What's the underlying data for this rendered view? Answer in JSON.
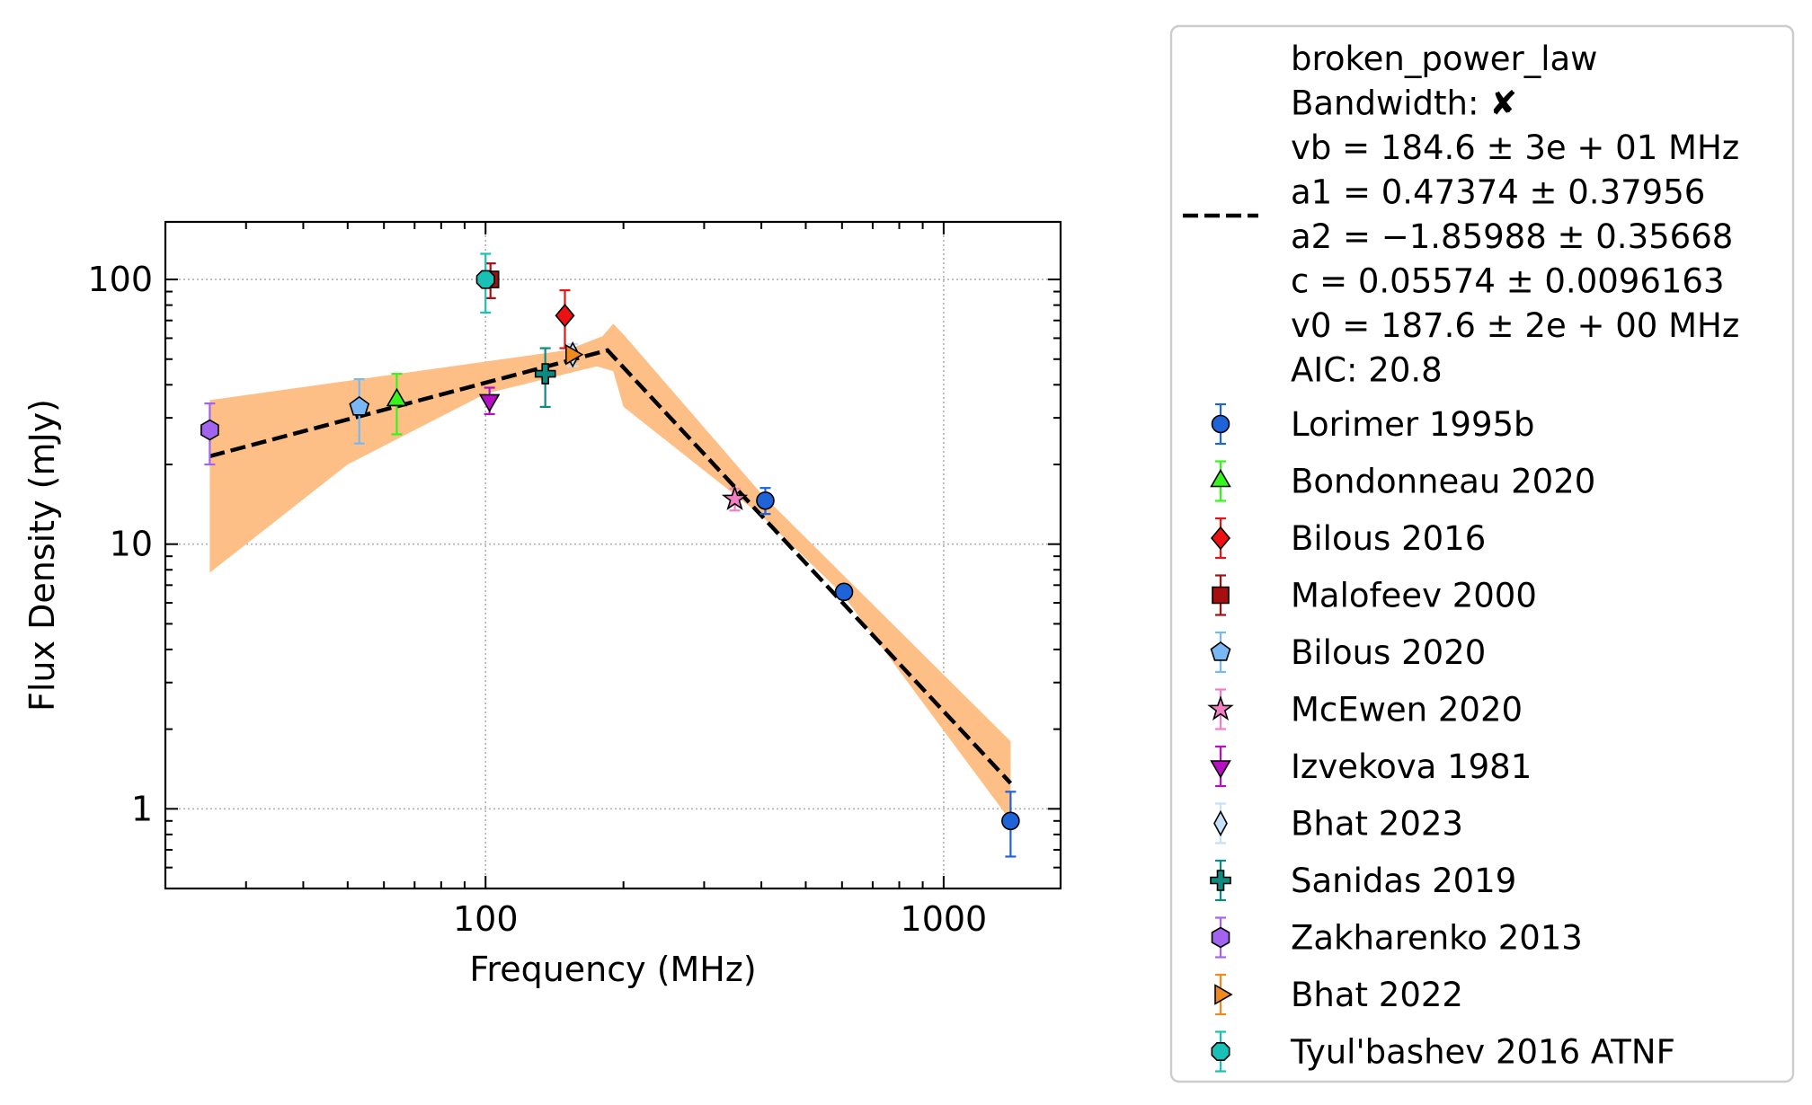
{
  "chart_data": {
    "type": "scatter",
    "xlabel": "Frequency (MHz)",
    "ylabel": "Flux Density (mJy)",
    "xscale": "log",
    "yscale": "log",
    "xlim": [
      20,
      1800
    ],
    "ylim": [
      0.5,
      165
    ],
    "x_ticks": [
      100,
      1000
    ],
    "x_tick_labels": [
      "100",
      "1000"
    ],
    "y_ticks": [
      1,
      10,
      100
    ],
    "y_tick_labels": [
      "1",
      "10",
      "100"
    ],
    "grid": true,
    "legend_position": "outside-right",
    "fit": {
      "name": "broken_power_law",
      "lines": [
        "broken_power_law",
        "Bandwidth: ✘",
        "vb = 184.6 ± 3e + 01 MHz",
        "a1 = 0.47374 ± 0.37956",
        "a2 = −1.85988 ± 0.35668",
        "c = 0.05574 ± 0.0096163",
        "v0 = 187.6 ± 2e + 00 MHz",
        "AIC: 20.8"
      ],
      "line_color": "#000000",
      "line_style": "dashed",
      "band_color": "#fdbf86",
      "curve": [
        [
          25,
          21.5
        ],
        [
          184.6,
          54
        ],
        [
          1400,
          1.25
        ]
      ],
      "band_upper": [
        [
          25,
          35
        ],
        [
          150,
          54
        ],
        [
          180,
          61
        ],
        [
          190,
          68
        ],
        [
          200,
          62
        ],
        [
          400,
          15.5
        ],
        [
          1400,
          1.8
        ]
      ],
      "band_lower": [
        [
          25,
          7.8
        ],
        [
          50,
          20
        ],
        [
          100,
          37
        ],
        [
          175,
          47
        ],
        [
          190,
          45
        ],
        [
          200,
          33
        ],
        [
          400,
          12.8
        ],
        [
          600,
          6.5
        ],
        [
          1400,
          0.9
        ]
      ]
    },
    "series": [
      {
        "name": "Lorimer 1995b",
        "marker": "circle",
        "color": "#1f63d9",
        "ecolor": "#1f63d9",
        "points": [
          {
            "x": 408,
            "y": 14.6,
            "lo": 13.0,
            "hi": 16.3
          },
          {
            "x": 606,
            "y": 6.6,
            "lo": 6.2,
            "hi": 7.0
          },
          {
            "x": 1400,
            "y": 0.9,
            "lo": 0.66,
            "hi": 1.16
          }
        ]
      },
      {
        "name": "Bondonneau 2020",
        "marker": "triangle-up",
        "color": "#36f51c",
        "ecolor": "#36f51c",
        "points": [
          {
            "x": 64,
            "y": 35,
            "lo": 26,
            "hi": 44
          }
        ]
      },
      {
        "name": "Bilous 2016",
        "marker": "diamond",
        "color": "#ee1111",
        "ecolor": "#ee1111",
        "points": [
          {
            "x": 149,
            "y": 73,
            "lo": 55,
            "hi": 91
          }
        ]
      },
      {
        "name": "Malofeev 2000",
        "marker": "square",
        "color": "#a50f0f",
        "ecolor": "#a50f0f",
        "points": [
          {
            "x": 102.5,
            "y": 100,
            "lo": 85,
            "hi": 115
          }
        ]
      },
      {
        "name": "Bilous 2020",
        "marker": "pentagon",
        "color": "#7ab8f5",
        "ecolor": "#7ab8f5",
        "points": [
          {
            "x": 53,
            "y": 33,
            "lo": 24,
            "hi": 42
          }
        ]
      },
      {
        "name": "McEwen 2020",
        "marker": "star",
        "color": "#f27fc3",
        "ecolor": "#f27fc3",
        "points": [
          {
            "x": 350,
            "y": 14.8,
            "lo": 13.4,
            "hi": 16.2
          }
        ]
      },
      {
        "name": "Izvekova 1981",
        "marker": "triangle-down",
        "color": "#b70fc4",
        "ecolor": "#b70fc4",
        "points": [
          {
            "x": 102,
            "y": 35,
            "lo": 31,
            "hi": 39
          }
        ]
      },
      {
        "name": "Bhat 2023",
        "marker": "thin-diamond",
        "color": "#c6e0f7",
        "ecolor": "#c6e0f7",
        "points": [
          {
            "x": 155,
            "y": 52,
            "lo": 47,
            "hi": 57
          }
        ]
      },
      {
        "name": "Sanidas 2019",
        "marker": "plus",
        "color": "#0f8a80",
        "ecolor": "#0f8a80",
        "points": [
          {
            "x": 135,
            "y": 44,
            "lo": 33,
            "hi": 55
          }
        ]
      },
      {
        "name": "Zakharenko 2013",
        "marker": "hexagon",
        "color": "#a264ef",
        "ecolor": "#a264ef",
        "points": [
          {
            "x": 25,
            "y": 27,
            "lo": 20,
            "hi": 34
          }
        ]
      },
      {
        "name": "Bhat 2022",
        "marker": "triangle-right",
        "color": "#f08a1c",
        "ecolor": "#f08a1c",
        "points": [
          {
            "x": 154,
            "y": 52,
            "lo": 49,
            "hi": 55
          }
        ]
      },
      {
        "name": "Tyul'bashev 2016 ATNF",
        "marker": "octagon",
        "color": "#18c0b6",
        "ecolor": "#18c0b6",
        "points": [
          {
            "x": 100,
            "y": 100,
            "lo": 75,
            "hi": 125
          }
        ]
      }
    ]
  }
}
